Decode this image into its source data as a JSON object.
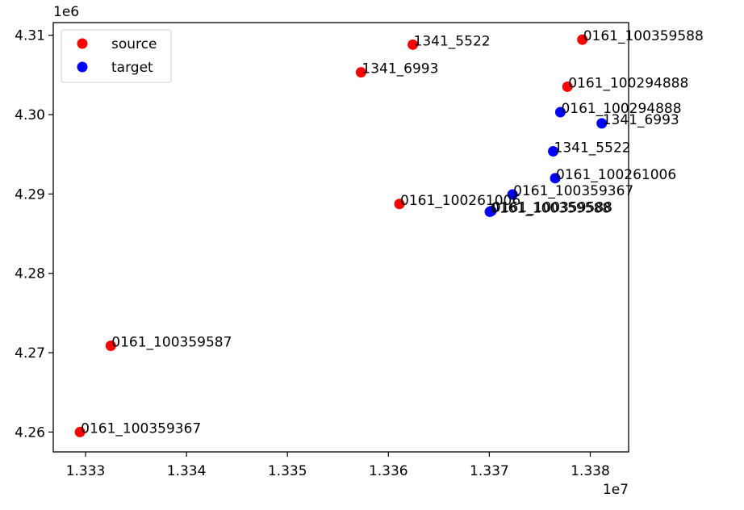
{
  "chart_data": {
    "type": "scatter",
    "x_offset_text": "1e7",
    "y_offset_text": "1e6",
    "xlim": [
      1.33268,
      1.33838
    ],
    "ylim": [
      4.2575,
      4.3116
    ],
    "xticks": [
      {
        "value": 1.333,
        "label": "1.333"
      },
      {
        "value": 1.334,
        "label": "1.334"
      },
      {
        "value": 1.335,
        "label": "1.335"
      },
      {
        "value": 1.336,
        "label": "1.336"
      },
      {
        "value": 1.337,
        "label": "1.337"
      },
      {
        "value": 1.338,
        "label": "1.338"
      }
    ],
    "yticks": [
      {
        "value": 4.26,
        "label": "4.26"
      },
      {
        "value": 4.27,
        "label": "4.27"
      },
      {
        "value": 4.28,
        "label": "4.28"
      },
      {
        "value": 4.29,
        "label": "4.29"
      },
      {
        "value": 4.3,
        "label": "4.30"
      },
      {
        "value": 4.31,
        "label": "4.31"
      }
    ],
    "legend": {
      "position": "upper left"
    },
    "series": [
      {
        "name": "source",
        "color": "#ff0000",
        "points": [
          {
            "x": 1.337922,
            "y": 4.30945,
            "label": "0161_100359588"
          },
          {
            "x": 1.336242,
            "y": 4.30882,
            "label": "1341_5522"
          },
          {
            "x": 1.335729,
            "y": 4.30533,
            "label": "1341_6993"
          },
          {
            "x": 1.337774,
            "y": 4.30352,
            "label": "0161_100294888"
          },
          {
            "x": 1.33611,
            "y": 4.28874,
            "label": "0161_100261006"
          },
          {
            "x": 1.33325,
            "y": 4.27087,
            "label": "0161_100359587"
          },
          {
            "x": 1.332945,
            "y": 4.26,
            "label": "0161_100359367"
          }
        ]
      },
      {
        "name": "target",
        "color": "#0000ff",
        "points": [
          {
            "x": 1.337704,
            "y": 4.30031,
            "label": "0161_100294888"
          },
          {
            "x": 1.338114,
            "y": 4.2989,
            "label": "1341_6993"
          },
          {
            "x": 1.337633,
            "y": 4.29538,
            "label": "1341_5522"
          },
          {
            "x": 1.337653,
            "y": 4.29199,
            "label": "0161_100261006"
          },
          {
            "x": 1.33723,
            "y": 4.28994,
            "label": "0161_100359367"
          },
          {
            "x": 1.33702,
            "y": 4.28786,
            "label": "0161_100359588"
          },
          {
            "x": 1.337005,
            "y": 4.28776,
            "label": "0161_100359588"
          }
        ]
      }
    ]
  }
}
